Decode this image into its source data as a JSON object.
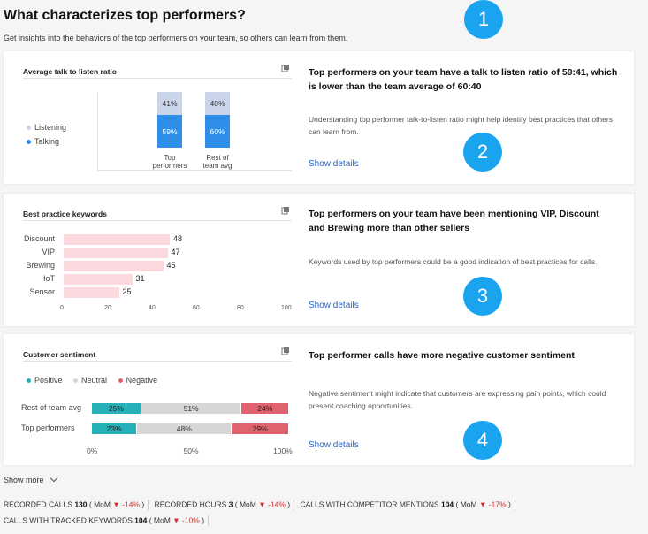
{
  "header": {
    "title": "What characterizes top performers?",
    "subtitle": "Get insights into the behaviors of the top performers on your team, so others can learn from them."
  },
  "talk_card": {
    "title": "Average talk to listen ratio",
    "legend": [
      "Listening",
      "Talking"
    ],
    "legend_colors": [
      "#c9d4ea",
      "#2f8fe8"
    ],
    "bars": [
      {
        "label_line1": "Top",
        "label_line2": "performers",
        "listening": "41%",
        "talking": "59%"
      },
      {
        "label_line1": "Rest of",
        "label_line2": "team avg",
        "listening": "40%",
        "talking": "60%"
      }
    ],
    "insight": "Top performers on your team have a talk to listen ratio of 59:41, which is lower than the team average of 60:40",
    "description": "Understanding top performer talk-to-listen ratio might help identify best practices that others can learn from.",
    "show_details": "Show details",
    "badge": "2"
  },
  "keywords_card": {
    "title": "Best practice keywords",
    "insight_prefix": "Top performers on your team have been mentioning ",
    "kw1": "VIP",
    "sep1": ", ",
    "kw2": "Discount",
    "mid": "and ",
    "kw3": "Brewing",
    "insight_suffix": " more than other sellers",
    "description": "Keywords used by top performers could be a good indication of best practices for calls.",
    "show_details": "Show details",
    "badge": "3"
  },
  "sentiment_card": {
    "title": "Customer sentiment",
    "legend": [
      "Positive",
      "Neutral",
      "Negative"
    ],
    "legend_colors": [
      "#26b0b8",
      "#d6d6d6",
      "#e0626e"
    ],
    "rows": [
      {
        "label": "Rest of team avg",
        "positive": "25%",
        "neutral": "51%",
        "negative": "24%"
      },
      {
        "label": "Top performers",
        "positive": "23%",
        "neutral": "48%",
        "negative": "29%"
      }
    ],
    "axis": [
      "0%",
      "50%",
      "100%"
    ],
    "insight": "Top performer calls have more negative customer sentiment",
    "description": "Negative sentiment might indicate that customers are expressing pain points, which could present coaching opportunities.",
    "show_details": "Show details",
    "badge": "4"
  },
  "badge1": "1",
  "show_more": "Show more",
  "stats": [
    {
      "label": "RECORDED CALLS",
      "value": "130",
      "mom": "( MoM",
      "change": "-14%",
      "close": ")"
    },
    {
      "label": "RECORDED HOURS",
      "value": "3",
      "mom": "( MoM",
      "change": "-14%",
      "close": ")"
    },
    {
      "label": "CALLS WITH COMPETITOR MENTIONS",
      "value": "104",
      "mom": "( MoM",
      "change": "-17%",
      "close": ")"
    },
    {
      "label": "CALLS WITH TRACKED KEYWORDS",
      "value": "104",
      "mom": "( MoM",
      "change": "-10%",
      "close": ")"
    }
  ],
  "chart_data": [
    {
      "type": "bar",
      "title": "Average talk to listen ratio",
      "categories": [
        "Top performers",
        "Rest of team avg"
      ],
      "series": [
        {
          "name": "Listening",
          "values": [
            41,
            40
          ]
        },
        {
          "name": "Talking",
          "values": [
            59,
            60
          ]
        }
      ],
      "ylim": [
        0,
        100
      ],
      "legend": "left"
    },
    {
      "type": "bar",
      "title": "Best practice keywords",
      "orientation": "horizontal",
      "categories": [
        "Discount",
        "VIP",
        "Brewing",
        "IoT",
        "Sensor"
      ],
      "values": [
        48,
        47,
        45,
        31,
        25
      ],
      "xlim": [
        0,
        100
      ],
      "xticks": [
        "0",
        "20",
        "40",
        "60",
        "80",
        "100"
      ]
    },
    {
      "type": "bar",
      "title": "Customer sentiment",
      "orientation": "horizontal",
      "stacked": true,
      "categories": [
        "Rest of team avg",
        "Top performers"
      ],
      "series": [
        {
          "name": "Positive",
          "values": [
            25,
            23
          ]
        },
        {
          "name": "Neutral",
          "values": [
            51,
            48
          ]
        },
        {
          "name": "Negative",
          "values": [
            24,
            29
          ]
        }
      ],
      "xlim": [
        0,
        100
      ],
      "legend": "top-left"
    }
  ]
}
